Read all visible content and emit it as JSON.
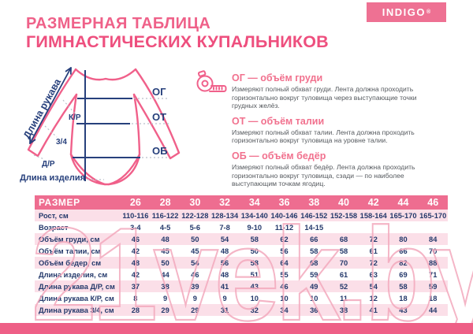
{
  "title": {
    "line1": "РАЗМЕРНАЯ ТАБЛИЦА",
    "line2": "ГИМНАСТИЧЕСКИХ КУПАЛЬНИКОВ"
  },
  "logo": {
    "name": "INDIGO",
    "mark": "®"
  },
  "diagram": {
    "sleeve_length_label": "Длина рукава",
    "kr_label": "К/Р",
    "three_quarter_label": "3/4",
    "dr_label": "Д/Р",
    "og_label": "ОГ",
    "ot_label": "ОТ",
    "ob_label": "ОБ",
    "item_length_label": "Длина изделия"
  },
  "info": {
    "items": [
      {
        "heading": "ОГ — объём груди",
        "body": "Измеряют полный обхват груди. Лента должна проходить\nгоризонтально вокруг туловища через выступающие точки\nгрудных желёз."
      },
      {
        "heading": "ОТ — объём талии",
        "body": "Измеряют полный обхват талии. Лента должна проходить\nгоризонтально вокруг туловища на уровне талии."
      },
      {
        "heading": "ОБ — объём бедёр",
        "body": "Измеряют полный обхват бедёр. Лента должна проходить\nгоризонтально вокруг туловища, сзади — по наиболее\nвыступающим точкам ягодиц."
      }
    ]
  },
  "table": {
    "header_label": "РАЗМЕР",
    "sizes": [
      "26",
      "28",
      "30",
      "32",
      "34",
      "36",
      "38",
      "40",
      "42",
      "44",
      "46"
    ],
    "rows": [
      {
        "label": "Рост, см",
        "values": [
          "110-116",
          "116-122",
          "122-128",
          "128-134",
          "134-140",
          "140-146",
          "146-152",
          "152-158",
          "158-164",
          "165-170",
          "165-170"
        ]
      },
      {
        "label": "Возраст",
        "values": [
          "3-4",
          "4-5",
          "5-6",
          "7-8",
          "9-10",
          "11-12",
          "14-15",
          "",
          "",
          "",
          ""
        ]
      },
      {
        "label": "Объём  груди, см",
        "values": [
          "46",
          "48",
          "50",
          "54",
          "58",
          "62",
          "66",
          "68",
          "72",
          "80",
          "84"
        ]
      },
      {
        "label": "Объём  талии, см",
        "values": [
          "42",
          "45",
          "45",
          "48",
          "50",
          "56",
          "58",
          "58",
          "61",
          "66",
          "70"
        ]
      },
      {
        "label": "Объём  бедер, см",
        "values": [
          "48",
          "50",
          "54",
          "56",
          "58",
          "64",
          "68",
          "70",
          "72",
          "82",
          "88"
        ]
      },
      {
        "label": "Длина изделия, см",
        "values": [
          "42",
          "44",
          "46",
          "48",
          "51",
          "55",
          "59",
          "61",
          "63",
          "69",
          "71"
        ]
      },
      {
        "label": "Длина рукава  Д/Р, см",
        "values": [
          "37",
          "38",
          "39",
          "41",
          "43",
          "46",
          "49",
          "52",
          "54",
          "58",
          "59"
        ]
      },
      {
        "label": "Длина рукава  К/Р, см",
        "values": [
          "8",
          "9",
          "9",
          "9",
          "10",
          "10",
          "10",
          "11",
          "12",
          "18",
          "18"
        ]
      },
      {
        "label": "Длина рукава  3/4, см",
        "values": [
          "28",
          "29",
          "29",
          "31",
          "32",
          "34",
          "36",
          "38",
          "41",
          "43",
          "44"
        ]
      }
    ]
  },
  "watermark": {
    "text": "21vek.by"
  },
  "colors": {
    "accent_pink": "#ee5f86",
    "table_header_pink": "#ee6d90",
    "row_pink": "#fbdfe8",
    "navy": "#24396b",
    "watermark_pink": "#f3a9bd"
  }
}
